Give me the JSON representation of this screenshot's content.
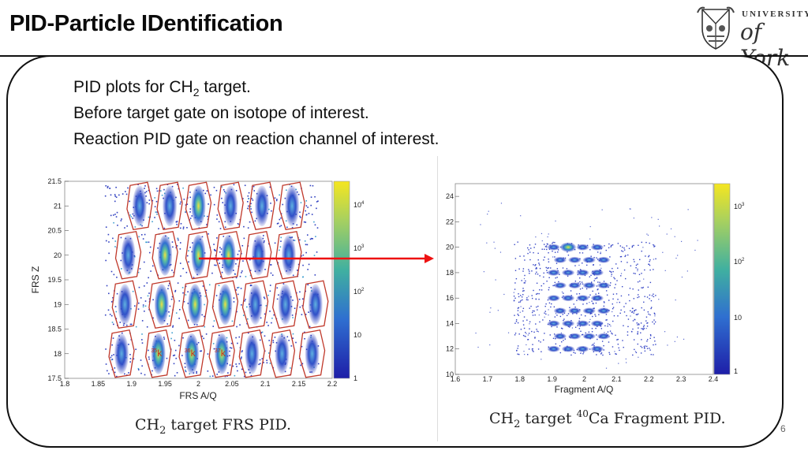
{
  "slide": {
    "title": "PID-Particle IDentification",
    "bullets": {
      "line1_prefix": "PID plots for CH",
      "line1_sub": "2",
      "line1_suffix": " target.",
      "line2": "Before target gate on isotope of interest.",
      "line3": "Reaction PID gate on reaction channel of interest."
    },
    "page_number": "6"
  },
  "logo": {
    "top_text": "UNIVERSITY",
    "script_text": "of York"
  },
  "colors": {
    "frame": "#111111",
    "gate": "#c0392b",
    "arrow": "#ee1111",
    "plot_low": "#2e3fbf",
    "plot_high": "#f5e620"
  },
  "chart_data": [
    {
      "type": "heatmap",
      "caption_main": "CH",
      "caption_sub": "2",
      "caption_rest": " target FRS PID.",
      "xlabel": "FRS A/Q",
      "ylabel": "FRS Z",
      "xlim": [
        1.8,
        2.2
      ],
      "ylim": [
        17.5,
        21.5
      ],
      "xticks": [
        "1.8",
        "1.85",
        "1.9",
        "1.95",
        "2",
        "2.05",
        "2.1",
        "2.15",
        "2.2"
      ],
      "yticks": [
        "17.5",
        "18",
        "18.5",
        "19",
        "19.5",
        "20",
        "20.5",
        "21",
        "21.5"
      ],
      "colorbar_ticks": [
        {
          "base": "10",
          "exp": "4"
        },
        {
          "base": "10",
          "exp": "3"
        },
        {
          "base": "10",
          "exp": "2"
        },
        {
          "base": "10",
          "exp": ""
        },
        {
          "base": "1",
          "exp": ""
        }
      ],
      "isotope_labels": [
        {
          "mass": "35",
          "symbol": "k"
        },
        {
          "mass": "36",
          "symbol": "k"
        },
        {
          "mass": "37",
          "symbol": "k"
        }
      ]
    },
    {
      "type": "heatmap",
      "caption_main": "CH",
      "caption_sub": "2",
      "caption_mid": " target ",
      "caption_sup": "40",
      "caption_rest": "Ca Fragment PID.",
      "xlabel": "Fragment A/Q",
      "ylabel": "",
      "xlim": [
        1.6,
        2.4
      ],
      "ylim": [
        10,
        25
      ],
      "xticks": [
        "1.6",
        "1.7",
        "1.8",
        "1.9",
        "2",
        "2.1",
        "2.2",
        "2.3",
        "2.4"
      ],
      "yticks": [
        "10",
        "12",
        "14",
        "16",
        "18",
        "20",
        "22",
        "24"
      ],
      "colorbar_ticks": [
        {
          "base": "10",
          "exp": "3"
        },
        {
          "base": "10",
          "exp": "2"
        },
        {
          "base": "10",
          "exp": ""
        },
        {
          "base": "1",
          "exp": ""
        }
      ]
    }
  ]
}
